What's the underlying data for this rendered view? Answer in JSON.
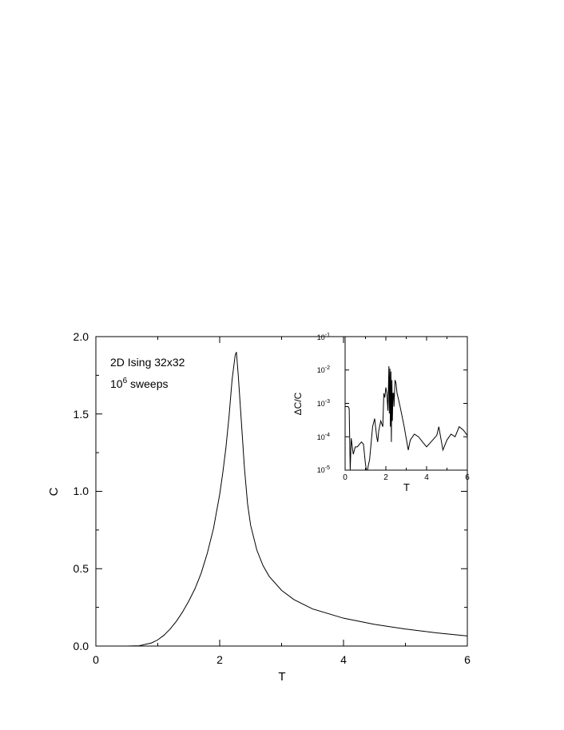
{
  "chart_data": [
    {
      "type": "line",
      "xlabel": "T",
      "ylabel": "C",
      "xlim": [
        0,
        6
      ],
      "ylim": [
        0,
        2
      ],
      "x_ticks": [
        "0",
        "2",
        "4",
        "6"
      ],
      "y_ticks": [
        "0.0",
        "0.5",
        "1.0",
        "1.5",
        "2.0"
      ],
      "grid": false,
      "annotations": {
        "line1": "2D Ising 32x32",
        "line2_base": "10",
        "line2_exp": "6",
        "line2_rest": " sweeps"
      },
      "series": [
        {
          "x": [
            0.0,
            0.5,
            0.7,
            0.9,
            1.0,
            1.1,
            1.2,
            1.3,
            1.4,
            1.5,
            1.6,
            1.7,
            1.8,
            1.9,
            2.0,
            2.05,
            2.1,
            2.15,
            2.2,
            2.25,
            2.27,
            2.3,
            2.35,
            2.4,
            2.45,
            2.5,
            2.6,
            2.7,
            2.8,
            3.0,
            3.2,
            3.5,
            4.0,
            4.5,
            5.0,
            5.5,
            6.0
          ],
          "y": [
            0.0,
            0.0,
            0.002,
            0.02,
            0.04,
            0.07,
            0.11,
            0.16,
            0.22,
            0.29,
            0.37,
            0.47,
            0.6,
            0.76,
            0.98,
            1.12,
            1.28,
            1.48,
            1.72,
            1.88,
            1.9,
            1.75,
            1.45,
            1.15,
            0.92,
            0.78,
            0.62,
            0.52,
            0.45,
            0.36,
            0.3,
            0.24,
            0.18,
            0.14,
            0.11,
            0.085,
            0.065
          ]
        }
      ]
    },
    {
      "type": "line",
      "xlabel": "T",
      "ylabel": "ΔC/C",
      "xlim": [
        0,
        6
      ],
      "ylim": [
        1e-05,
        0.1
      ],
      "yscale": "log",
      "x_ticks": [
        "0",
        "2",
        "4",
        "6"
      ],
      "y_ticks": [
        {
          "base": "10",
          "exp": "-1"
        },
        {
          "base": "10",
          "exp": "-2"
        },
        {
          "base": "10",
          "exp": "-3"
        },
        {
          "base": "10",
          "exp": "-4"
        },
        {
          "base": "10",
          "exp": "-5"
        }
      ],
      "series": [
        {
          "x": [
            0.0,
            0.15,
            0.2,
            0.25,
            0.3,
            0.4,
            0.5,
            0.6,
            0.8,
            0.9,
            1.0,
            1.05,
            1.1,
            1.15,
            1.2,
            1.35,
            1.45,
            1.55,
            1.6,
            1.65,
            1.75,
            1.85,
            1.9,
            1.95,
            2.0,
            2.05,
            2.1,
            2.15,
            2.17,
            2.2,
            2.22,
            2.25,
            2.27,
            2.3,
            2.32,
            2.35,
            2.38,
            2.4,
            2.45,
            2.5,
            2.55,
            2.6,
            2.7,
            2.9,
            3.1,
            3.2,
            3.4,
            3.6,
            3.8,
            4.0,
            4.3,
            4.5,
            4.6,
            4.7,
            4.8,
            5.0,
            5.2,
            5.4,
            5.6,
            5.8,
            6.0
          ],
          "y": [
            0.0008,
            0.0008,
            0.0007,
            1e-05,
            9e-05,
            3e-05,
            5e-05,
            5e-05,
            7e-05,
            6e-05,
            1.5e-05,
            1e-05,
            1e-05,
            1.5e-05,
            2e-05,
            0.0002,
            0.00035,
            0.0001,
            7e-05,
            0.00015,
            0.0003,
            0.0002,
            0.002,
            0.0015,
            0.003,
            0.002,
            0.0006,
            0.013,
            0.0005,
            0.011,
            0.0002,
            0.009,
            7e-05,
            0.005,
            0.0003,
            0.002,
            0.002,
            0.0008,
            0.005,
            0.004,
            0.002,
            0.0015,
            0.0008,
            0.0002,
            4e-05,
            8e-05,
            0.00012,
            0.0001,
            7e-05,
            5e-05,
            8e-05,
            0.00011,
            0.0002,
            9e-05,
            4e-05,
            8e-05,
            0.00012,
            0.0001,
            0.0002,
            0.00016,
            0.00011
          ]
        }
      ]
    }
  ]
}
